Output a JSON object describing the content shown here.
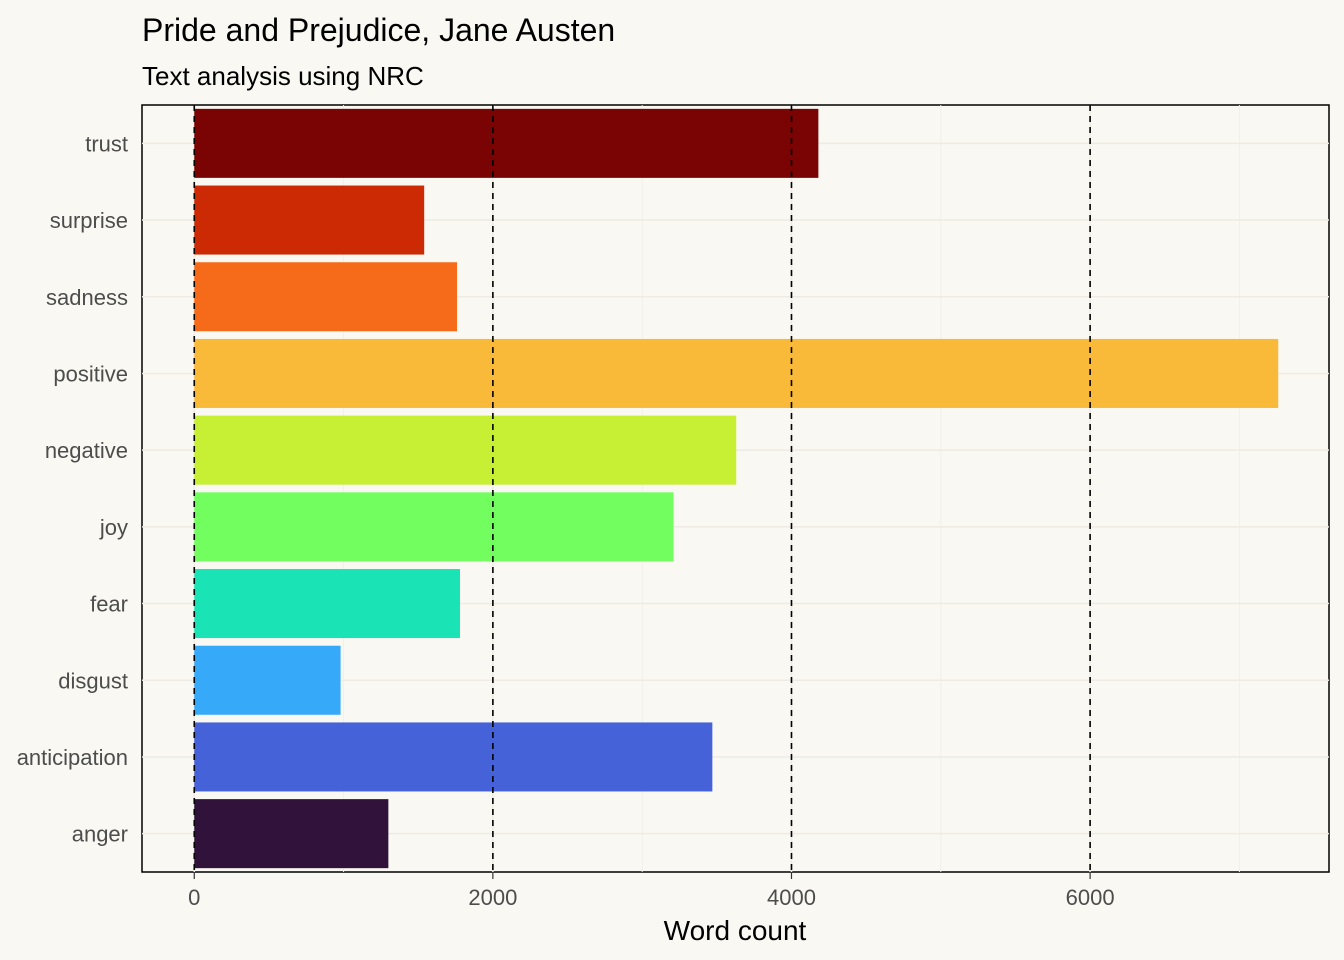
{
  "chart_data": {
    "type": "bar",
    "orientation": "horizontal",
    "title": "Pride and Prejudice, Jane Austen",
    "subtitle": "Text analysis using NRC",
    "xlabel": "Word count",
    "ylabel": "",
    "xlim": [
      -350,
      7600
    ],
    "xticks": [
      0,
      2000,
      4000,
      6000
    ],
    "xtick_labels": [
      "0",
      "2000",
      "4000",
      "6000"
    ],
    "vlines": [
      0,
      2000,
      4000,
      6000
    ],
    "vline_style": "dashed",
    "grid": true,
    "legend": "none",
    "categories": [
      "trust",
      "surprise",
      "sadness",
      "positive",
      "negative",
      "joy",
      "fear",
      "disgust",
      "anticipation",
      "anger"
    ],
    "values": [
      4180,
      1540,
      1760,
      7260,
      3630,
      3210,
      1780,
      980,
      3470,
      1300
    ],
    "colors": [
      "#7a0403",
      "#cb2a04",
      "#f66b19",
      "#faba39",
      "#c7ef34",
      "#72fe5e",
      "#1ae4b6",
      "#36aaf9",
      "#4662d8",
      "#30123b"
    ]
  }
}
